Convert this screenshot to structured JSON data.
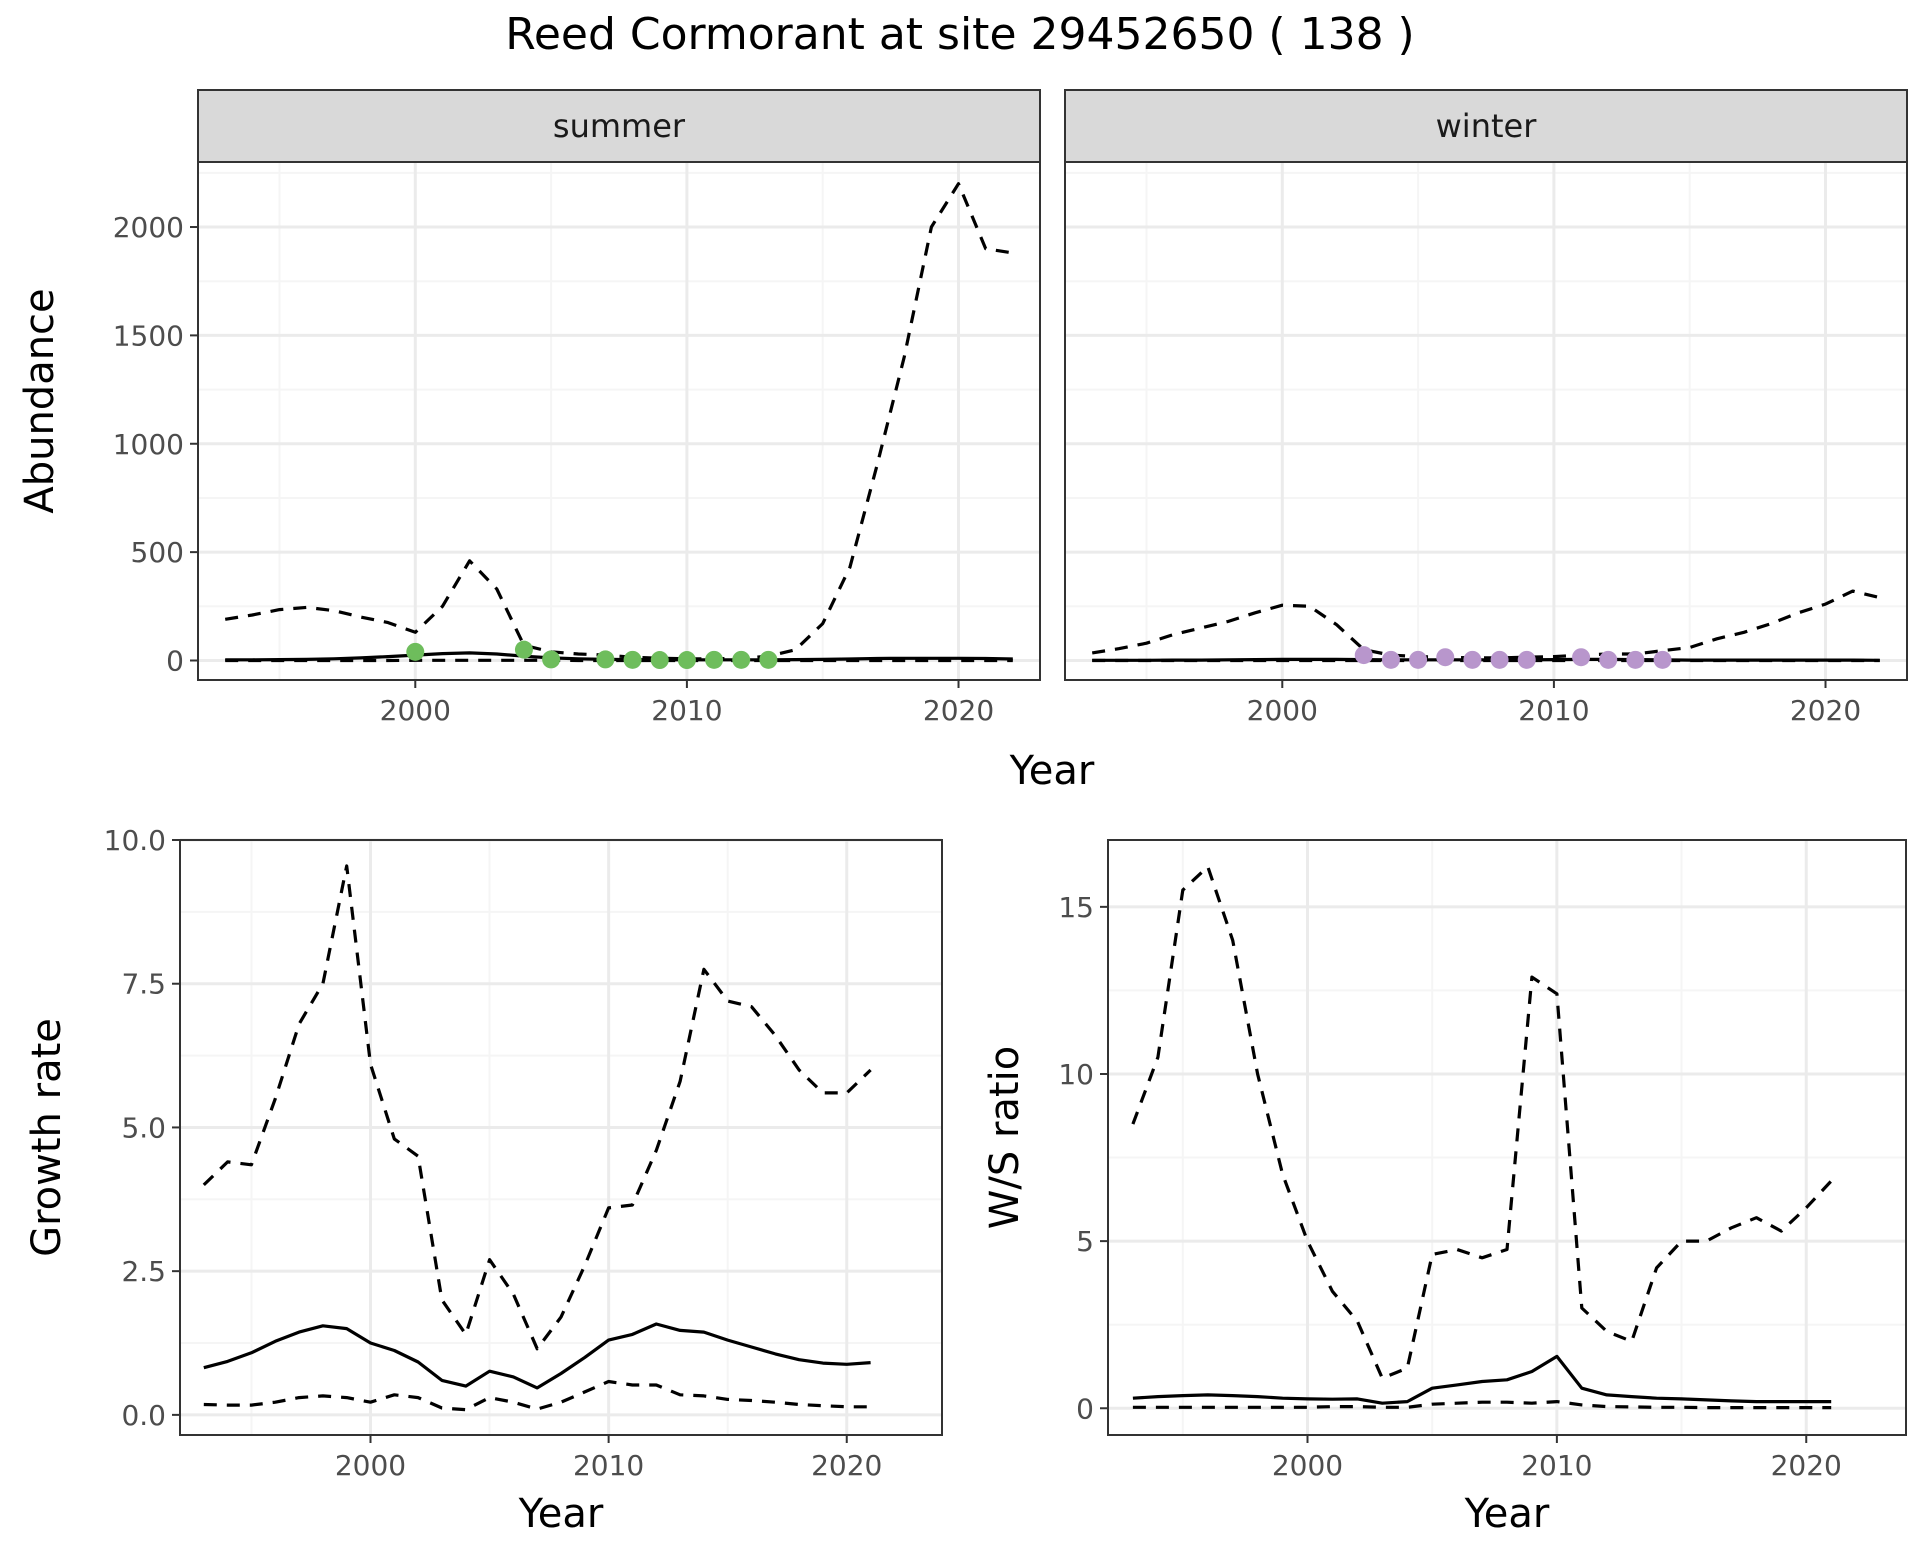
{
  "figure": {
    "title": "Reed Cormorant at site 29452650 ( 138 )"
  },
  "chart_data": [
    {
      "type": "line",
      "panel": "abundance-summer",
      "strip": "summer",
      "ylabel": "Abundance",
      "xlabel": "Year",
      "xlim": [
        1992,
        2023
      ],
      "ylim": [
        -90,
        2300
      ],
      "xticks": [
        2000,
        2010,
        2020
      ],
      "yticks": [
        0,
        500,
        1000,
        1500,
        2000
      ],
      "point_color": "#6ebd5c",
      "series": [
        {
          "name": "",
          "style": "solid",
          "x": [
            1993,
            1994,
            1995,
            1996,
            1997,
            1998,
            1999,
            2000,
            2001,
            2002,
            2003,
            2004,
            2005,
            2006,
            2007,
            2008,
            2009,
            2010,
            2011,
            2012,
            2013,
            2014,
            2015,
            2016,
            2017,
            2018,
            2019,
            2020,
            2021,
            2022
          ],
          "y": [
            3,
            3,
            4,
            5,
            8,
            12,
            18,
            25,
            32,
            35,
            30,
            20,
            12,
            8,
            5,
            4,
            3,
            3,
            3,
            3,
            3,
            4,
            5,
            7,
            9,
            10,
            10,
            10,
            9,
            7
          ]
        },
        {
          "name": "",
          "style": "dashed",
          "x": [
            1993,
            1994,
            1995,
            1996,
            1997,
            1998,
            1999,
            2000,
            2001,
            2002,
            2003,
            2004,
            2005,
            2006,
            2007,
            2008,
            2009,
            2010,
            2011,
            2012,
            2013,
            2014,
            2015,
            2016,
            2017,
            2018,
            2019,
            2020,
            2021,
            2022
          ],
          "y": [
            190,
            210,
            235,
            245,
            230,
            200,
            175,
            130,
            250,
            460,
            330,
            70,
            40,
            30,
            25,
            15,
            10,
            8,
            8,
            10,
            20,
            50,
            170,
            430,
            900,
            1400,
            2000,
            2200,
            1900,
            1880
          ]
        },
        {
          "name": "",
          "style": "dashed",
          "x": [
            1993,
            1994,
            1995,
            1996,
            1997,
            1998,
            1999,
            2000,
            2001,
            2002,
            2003,
            2004,
            2005,
            2006,
            2007,
            2008,
            2009,
            2010,
            2011,
            2012,
            2013,
            2014,
            2015,
            2016,
            2017,
            2018,
            2019,
            2020,
            2021,
            2022
          ],
          "y": [
            0,
            0,
            0,
            0,
            0,
            0,
            0,
            1,
            1,
            1,
            1,
            1,
            1,
            0,
            0,
            0,
            0,
            0,
            0,
            0,
            0,
            0,
            0,
            0,
            0,
            0,
            0,
            0,
            0,
            0
          ]
        }
      ],
      "points": {
        "x": [
          2000,
          2004,
          2005,
          2007,
          2008,
          2009,
          2010,
          2011,
          2012,
          2013
        ],
        "y": [
          40,
          50,
          5,
          5,
          3,
          2,
          2,
          3,
          3,
          3
        ]
      }
    },
    {
      "type": "line",
      "panel": "abundance-winter",
      "strip": "winter",
      "ylabel": "",
      "xlabel": "Year",
      "xlim": [
        1992,
        2023
      ],
      "ylim": [
        -90,
        2300
      ],
      "xticks": [
        2000,
        2010,
        2020
      ],
      "yticks": [
        0,
        500,
        1000,
        1500,
        2000
      ],
      "point_color": "#b896cc",
      "series": [
        {
          "name": "",
          "style": "solid",
          "x": [
            1993,
            1994,
            1995,
            1996,
            1997,
            1998,
            1999,
            2000,
            2001,
            2002,
            2003,
            2004,
            2005,
            2006,
            2007,
            2008,
            2009,
            2010,
            2011,
            2012,
            2013,
            2014,
            2015,
            2016,
            2017,
            2018,
            2019,
            2020,
            2021,
            2022
          ],
          "y": [
            1,
            1,
            1,
            2,
            2,
            3,
            4,
            5,
            5,
            5,
            4,
            3,
            3,
            3,
            3,
            3,
            3,
            4,
            5,
            5,
            4,
            3,
            2,
            2,
            2,
            2,
            2,
            2,
            2,
            1
          ]
        },
        {
          "name": "",
          "style": "dashed",
          "x": [
            1993,
            1994,
            1995,
            1996,
            1997,
            1998,
            1999,
            2000,
            2001,
            2002,
            2003,
            2004,
            2005,
            2006,
            2007,
            2008,
            2009,
            2010,
            2011,
            2012,
            2013,
            2014,
            2015,
            2016,
            2017,
            2018,
            2019,
            2020,
            2021,
            2022
          ],
          "y": [
            35,
            55,
            80,
            120,
            150,
            180,
            220,
            255,
            250,
            165,
            50,
            25,
            18,
            15,
            12,
            12,
            15,
            18,
            25,
            30,
            30,
            45,
            60,
            100,
            130,
            170,
            220,
            260,
            320,
            290
          ]
        },
        {
          "name": "",
          "style": "dashed",
          "x": [
            1993,
            1994,
            1995,
            1996,
            1997,
            1998,
            1999,
            2000,
            2001,
            2002,
            2003,
            2004,
            2005,
            2006,
            2007,
            2008,
            2009,
            2010,
            2011,
            2012,
            2013,
            2014,
            2015,
            2016,
            2017,
            2018,
            2019,
            2020,
            2021,
            2022
          ],
          "y": [
            0,
            0,
            0,
            0,
            0,
            0,
            0,
            0,
            0,
            0,
            0,
            0,
            0,
            0,
            0,
            0,
            0,
            0,
            0,
            0,
            0,
            0,
            0,
            0,
            0,
            0,
            0,
            0,
            0,
            0
          ]
        }
      ],
      "points": {
        "x": [
          2003,
          2004,
          2005,
          2006,
          2007,
          2008,
          2009,
          2011,
          2012,
          2013,
          2014
        ],
        "y": [
          25,
          3,
          3,
          15,
          3,
          3,
          3,
          15,
          3,
          3,
          3
        ]
      }
    },
    {
      "type": "line",
      "panel": "growth-rate",
      "ylabel": "Growth rate",
      "xlabel": "Year",
      "xlim": [
        1992,
        2024
      ],
      "ylim": [
        -0.35,
        10.0
      ],
      "xticks": [
        2000,
        2010,
        2020
      ],
      "yticks": [
        0.0,
        2.5,
        5.0,
        7.5,
        10.0
      ],
      "ytick_labels": [
        "0.0",
        "2.5",
        "5.0",
        "7.5",
        "10.0"
      ],
      "series": [
        {
          "name": "",
          "style": "solid",
          "x": [
            1993,
            1994,
            1995,
            1996,
            1997,
            1998,
            1999,
            2000,
            2001,
            2002,
            2003,
            2004,
            2005,
            2006,
            2007,
            2008,
            2009,
            2010,
            2011,
            2012,
            2013,
            2014,
            2015,
            2016,
            2017,
            2018,
            2019,
            2020,
            2021
          ],
          "y": [
            0.82,
            0.93,
            1.08,
            1.28,
            1.44,
            1.55,
            1.5,
            1.25,
            1.12,
            0.92,
            0.6,
            0.5,
            0.76,
            0.66,
            0.47,
            0.72,
            1.0,
            1.3,
            1.4,
            1.58,
            1.47,
            1.44,
            1.3,
            1.18,
            1.06,
            0.96,
            0.9,
            0.88,
            0.91
          ]
        },
        {
          "name": "",
          "style": "dashed",
          "x": [
            1993,
            1994,
            1995,
            1996,
            1997,
            1998,
            1999,
            2000,
            2001,
            2002,
            2003,
            2004,
            2005,
            2006,
            2007,
            2008,
            2009,
            2010,
            2011,
            2012,
            2013,
            2014,
            2015,
            2016,
            2017,
            2018,
            2019,
            2020,
            2021
          ],
          "y": [
            4.0,
            4.4,
            4.35,
            5.5,
            6.8,
            7.5,
            9.55,
            6.1,
            4.8,
            4.5,
            2.0,
            1.4,
            2.7,
            2.1,
            1.15,
            1.7,
            2.6,
            3.6,
            3.65,
            4.6,
            5.8,
            7.75,
            7.2,
            7.1,
            6.6,
            6.0,
            5.6,
            5.6,
            6.0
          ]
        },
        {
          "name": "",
          "style": "dashed",
          "x": [
            1993,
            1994,
            1995,
            1996,
            1997,
            1998,
            1999,
            2000,
            2001,
            2002,
            2003,
            2004,
            2005,
            2006,
            2007,
            2008,
            2009,
            2010,
            2011,
            2012,
            2013,
            2014,
            2015,
            2016,
            2017,
            2018,
            2019,
            2020,
            2021
          ],
          "y": [
            0.18,
            0.17,
            0.17,
            0.22,
            0.3,
            0.33,
            0.3,
            0.22,
            0.35,
            0.3,
            0.12,
            0.09,
            0.3,
            0.22,
            0.1,
            0.22,
            0.4,
            0.58,
            0.52,
            0.52,
            0.35,
            0.33,
            0.27,
            0.25,
            0.22,
            0.18,
            0.16,
            0.14,
            0.14
          ]
        }
      ]
    },
    {
      "type": "line",
      "panel": "ws-ratio",
      "ylabel": "W/S ratio",
      "xlabel": "Year",
      "xlim": [
        1992,
        2024
      ],
      "ylim": [
        -0.8,
        17.0
      ],
      "xticks": [
        2000,
        2010,
        2020
      ],
      "yticks": [
        0,
        5,
        10,
        15
      ],
      "series": [
        {
          "name": "",
          "style": "solid",
          "x": [
            1993,
            1994,
            1995,
            1996,
            1997,
            1998,
            1999,
            2000,
            2001,
            2002,
            2003,
            2004,
            2005,
            2006,
            2007,
            2008,
            2009,
            2010,
            2011,
            2012,
            2013,
            2014,
            2015,
            2016,
            2017,
            2018,
            2019,
            2020,
            2021
          ],
          "y": [
            0.3,
            0.35,
            0.38,
            0.4,
            0.38,
            0.35,
            0.3,
            0.28,
            0.27,
            0.28,
            0.15,
            0.2,
            0.6,
            0.7,
            0.8,
            0.85,
            1.1,
            1.55,
            0.6,
            0.4,
            0.35,
            0.3,
            0.28,
            0.25,
            0.22,
            0.2,
            0.2,
            0.2,
            0.2
          ]
        },
        {
          "name": "",
          "style": "dashed",
          "x": [
            1993,
            1994,
            1995,
            1996,
            1997,
            1998,
            1999,
            2000,
            2001,
            2002,
            2003,
            2004,
            2005,
            2006,
            2007,
            2008,
            2009,
            2010,
            2011,
            2012,
            2013,
            2014,
            2015,
            2016,
            2017,
            2018,
            2019,
            2020,
            2021
          ],
          "y": [
            8.5,
            10.5,
            15.5,
            16.2,
            14.0,
            10.0,
            7.0,
            5.0,
            3.5,
            2.6,
            0.9,
            1.2,
            4.6,
            4.75,
            4.5,
            4.75,
            12.9,
            12.4,
            3.0,
            2.3,
            2.0,
            4.2,
            5.0,
            5.0,
            5.4,
            5.7,
            5.3,
            6.0,
            6.8
          ]
        },
        {
          "name": "",
          "style": "dashed",
          "x": [
            1993,
            1994,
            1995,
            1996,
            1997,
            1998,
            1999,
            2000,
            2001,
            2002,
            2003,
            2004,
            2005,
            2006,
            2007,
            2008,
            2009,
            2010,
            2011,
            2012,
            2013,
            2014,
            2015,
            2016,
            2017,
            2018,
            2019,
            2020,
            2021
          ],
          "y": [
            0.03,
            0.03,
            0.03,
            0.03,
            0.03,
            0.03,
            0.03,
            0.03,
            0.05,
            0.05,
            0.03,
            0.03,
            0.12,
            0.15,
            0.18,
            0.18,
            0.15,
            0.2,
            0.1,
            0.05,
            0.04,
            0.03,
            0.03,
            0.02,
            0.02,
            0.02,
            0.02,
            0.02,
            0.02
          ]
        }
      ]
    }
  ]
}
